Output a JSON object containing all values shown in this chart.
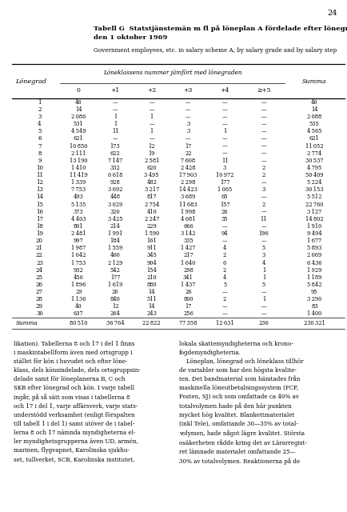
{
  "page_number": "24",
  "title_sv": "Tabell G  Statstjänstemän m fl på löneplan A fördelade efter lönegrad och löneklass\nden 1 oktober 1969",
  "title_en": "Government employees, etc. in salary scheme A, by salary grade and by salary step",
  "col_header_main": "Löneklassens nummer jämfört med lönegraden",
  "col_header_left": "Lönegrad",
  "col_header_right": "Summa",
  "col_subheaders": [
    "0",
    "+1",
    "+2",
    "+3",
    "+4",
    "≥+5"
  ],
  "rows": [
    [
      1,
      46,
      null,
      null,
      null,
      null,
      null,
      46
    ],
    [
      2,
      14,
      null,
      null,
      null,
      null,
      null,
      14
    ],
    [
      3,
      2086,
      1,
      1,
      null,
      null,
      null,
      2088
    ],
    [
      4,
      531,
      1,
      null,
      3,
      null,
      null,
      535
    ],
    [
      5,
      4549,
      11,
      1,
      3,
      1,
      null,
      4565
    ],
    [
      6,
      621,
      null,
      null,
      null,
      null,
      null,
      621
    ],
    [
      7,
      10850,
      173,
      12,
      17,
      null,
      null,
      11052
    ],
    [
      8,
      2111,
      622,
      19,
      22,
      null,
      null,
      2774
    ],
    [
      9,
      13190,
      7147,
      2581,
      7608,
      11,
      null,
      30537
    ],
    [
      10,
      1410,
      332,
      620,
      2428,
      3,
      2,
      4795
    ],
    [
      11,
      11419,
      6618,
      3495,
      17903,
      10972,
      2,
      50409
    ],
    [
      12,
      1339,
      928,
      482,
      2298,
      177,
      null,
      5224
    ],
    [
      13,
      7753,
      3692,
      3217,
      14423,
      1065,
      3,
      30153
    ],
    [
      14,
      493,
      448,
      817,
      3689,
      65,
      null,
      5512
    ],
    [
      15,
      5135,
      3029,
      2754,
      11683,
      157,
      2,
      22760
    ],
    [
      16,
      373,
      320,
      410,
      1998,
      26,
      null,
      3127
    ],
    [
      17,
      4403,
      3425,
      2247,
      4681,
      35,
      11,
      14802
    ],
    [
      18,
      801,
      214,
      229,
      666,
      null,
      null,
      1910
    ],
    [
      19,
      2481,
      1991,
      1590,
      3142,
      94,
      196,
      9494
    ],
    [
      20,
      997,
      184,
      161,
      335,
      null,
      null,
      1677
    ],
    [
      21,
      1987,
      1559,
      911,
      1427,
      4,
      5,
      5893
    ],
    [
      22,
      1042,
      460,
      345,
      217,
      2,
      3,
      2069
    ],
    [
      23,
      1753,
      2129,
      904,
      1640,
      6,
      4,
      6436
    ],
    [
      24,
      932,
      542,
      154,
      298,
      2,
      1,
      1929
    ],
    [
      25,
      456,
      177,
      210,
      341,
      4,
      1,
      1189
    ],
    [
      26,
      1896,
      1619,
      880,
      1437,
      5,
      5,
      5842
    ],
    [
      27,
      29,
      26,
      14,
      26,
      null,
      null,
      95
    ],
    [
      28,
      1136,
      840,
      511,
      800,
      2,
      1,
      3290
    ],
    [
      29,
      40,
      12,
      14,
      17,
      null,
      null,
      83
    ],
    [
      30,
      637,
      264,
      243,
      256,
      null,
      null,
      1400
    ]
  ],
  "summa_row": [
    "Summa",
    80510,
    36764,
    22822,
    77358,
    12631,
    236,
    230321
  ],
  "body_text_left": "likation). Tabellerna 8 och 17 i del 1 finns\ni maskintabellform även med ortsgrupp i\nstället för kön i huvudet och efter löne-\nklass, dels könsindelade, dels ortsgruppsin-\ndelade samt för löneplanerna B, C och\nSKB efter lönegrad och kön. I varje tabell\ningår, på så sätt som visas i tabellerna 8\noch 17 i del 1, varje affärsverk, varje stats-\nunderstödd verksamhet (enligt förspalten\ntill tabell 1 i del 1) samt utöver de i tabel-\nlerna 8 och 17 nämnda myndigheterna el-\nler myndighetsgrupperna även UD, armén,\nmarinen, flygvapnet, Karolinska sjukhu-\nset, tullverket, SCB, Karolinska institutet,",
  "body_text_right": "lokala skattemyndigheterna och krono-\nfogdemyndigheterna.\n    Löneplan, lönegrad och löneklass tillhör\nde variabler som har den högsta kvalite-\nten. Det bandmaterial som hämtades från\nmaskinella löneutbetalningssystem (FCF,\nPosten, SJ) och som omfattade ca 40% av\ntotalvolymen hade på den här punkten\nmycket hög kvalitet. Blankettmaterialet\n(inkl Tele), omfattande 30—35% av total-\nvolymen, hade något lägre kvalitet. Största\nosäkerheten rådde kring det av Lärarregist-\nret lämnade materialet omfattande 25—\n30% av totalvolymen. Reaktionerna på de"
}
